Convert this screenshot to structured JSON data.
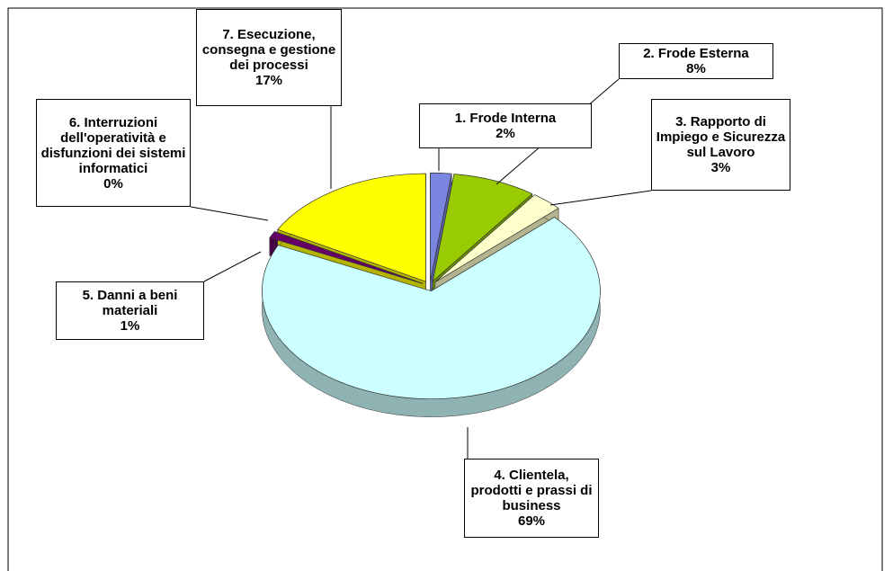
{
  "chart_data": {
    "type": "pie",
    "categories": [
      "1. Frode Interna",
      "2. Frode Esterna",
      "3. Rapporto di Impiego e Sicurezza sul Lavoro",
      "4. Clientela, prodotti e prassi di business",
      "5. Danni a beni materiali",
      "6. Interruzioni dell'operatività e disfunzioni dei sistemi informatici",
      "7. Esecuzione, consegna e gestione dei processi"
    ],
    "values": [
      2,
      8,
      3,
      69,
      1,
      0,
      17
    ],
    "value_labels": [
      "2%",
      "8%",
      "3%",
      "69%",
      "1%",
      "0%",
      "17%"
    ],
    "colors": [
      "#7b86e0",
      "#99cc00",
      "#ffffcc",
      "#ccffff",
      "#660066",
      "#9999ff",
      "#ffff00"
    ]
  }
}
